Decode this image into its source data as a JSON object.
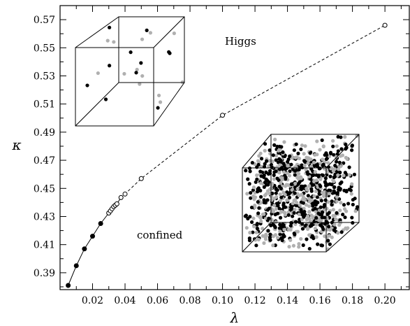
{
  "chart_data": {
    "type": "scatter",
    "title": "",
    "xlabel": "λ",
    "ylabel": "κ",
    "xlim": [
      0.0,
      0.215
    ],
    "ylim": [
      0.378,
      0.58
    ],
    "xticks": [
      0.02,
      0.04,
      0.06,
      0.08,
      0.1,
      0.12,
      0.14,
      0.16,
      0.18,
      0.2
    ],
    "xtick_labels": [
      "0.02",
      "0.04",
      "0.06",
      "0.08",
      "0.10",
      "0.12",
      "0.14",
      "0.16",
      "0.18",
      "0.20"
    ],
    "yticks": [
      0.39,
      0.41,
      0.43,
      0.45,
      0.47,
      0.49,
      0.51,
      0.53,
      0.55,
      0.57
    ],
    "ytick_labels": [
      "0.39",
      "0.41",
      "0.43",
      "0.45",
      "0.47",
      "0.49",
      "0.51",
      "0.53",
      "0.55",
      "0.57"
    ],
    "grid": false,
    "annotations": [
      "Higgs",
      "confined"
    ],
    "series": [
      {
        "style": "filled-circles-solid-line",
        "color": "#000000",
        "x": [
          0.005,
          0.01,
          0.015,
          0.02,
          0.025,
          0.03
        ],
        "y": [
          0.381,
          0.395,
          0.407,
          0.416,
          0.425,
          0.4325
        ]
      },
      {
        "style": "open-circles-dashed-line",
        "color": "#000000",
        "x": [
          0.03,
          0.031,
          0.032,
          0.033,
          0.034,
          0.035,
          0.0375,
          0.04,
          0.05,
          0.1,
          0.2
        ],
        "y": [
          0.4325,
          0.434,
          0.4355,
          0.437,
          0.438,
          0.439,
          0.4435,
          0.446,
          0.457,
          0.502,
          0.566
        ]
      }
    ]
  }
}
